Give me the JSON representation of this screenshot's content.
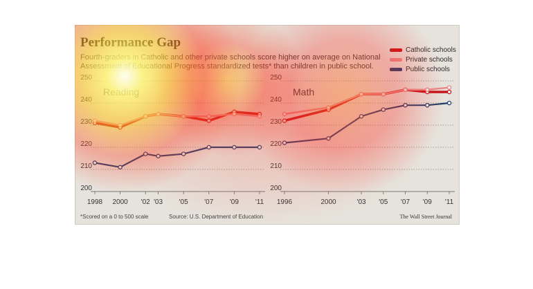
{
  "title": "Performance Gap",
  "subtitle": "Fourth-graders in Catholic and other private schools score higher on average on National Assessment of Educational Progress standardized tests* than children in public school.",
  "legend": [
    {
      "label": "Catholic schools",
      "color": "#c4161c"
    },
    {
      "label": "Private schools",
      "color": "#e88a8a"
    },
    {
      "label": "Public schools",
      "color": "#1f3f6e"
    }
  ],
  "footnote": "*Scored on a 0 to 500 scale",
  "source": "Source: U.S. Department of Education",
  "credit": "The Wall Street Journal",
  "chart_data": [
    {
      "type": "line",
      "title": "Reading",
      "ylim": [
        200,
        250
      ],
      "yticks": [
        "200",
        "210",
        "220",
        "230",
        "240",
        "250"
      ],
      "grid": true,
      "x": [
        1998,
        2000,
        2002,
        2003,
        2005,
        2007,
        2009,
        2011
      ],
      "xtick_labels": [
        "1998",
        "2000",
        "'02",
        "'03",
        "'05",
        "'07",
        "'09",
        "'11"
      ],
      "series": [
        {
          "name": "Catholic schools",
          "color": "#c4161c",
          "values": [
            231,
            229,
            234,
            235,
            234,
            232,
            236,
            235
          ]
        },
        {
          "name": "Private schools",
          "color": "#e88a8a",
          "values": [
            232,
            230,
            234,
            235,
            234,
            234,
            235,
            234
          ]
        },
        {
          "name": "Public schools",
          "color": "#1f3f6e",
          "values": [
            213,
            211,
            217,
            216,
            217,
            220,
            220,
            220
          ]
        }
      ]
    },
    {
      "type": "line",
      "title": "Math",
      "ylim": [
        200,
        250
      ],
      "yticks": [
        "200",
        "210",
        "220",
        "230",
        "240",
        "250"
      ],
      "grid": true,
      "x": [
        1996,
        2000,
        2003,
        2005,
        2007,
        2009,
        2011
      ],
      "xtick_labels": [
        "1996",
        "2000",
        "'03",
        "'05",
        "'07",
        "'09",
        "'11"
      ],
      "series": [
        {
          "name": "Catholic schools",
          "color": "#c4161c",
          "values": [
            232,
            237,
            244,
            244,
            246,
            245,
            245
          ]
        },
        {
          "name": "Private schools",
          "color": "#e88a8a",
          "values": [
            235,
            238,
            244,
            244,
            246,
            246,
            247
          ]
        },
        {
          "name": "Public schools",
          "color": "#1f3f6e",
          "values": [
            222,
            224,
            234,
            237,
            239,
            239,
            240
          ]
        }
      ]
    }
  ]
}
